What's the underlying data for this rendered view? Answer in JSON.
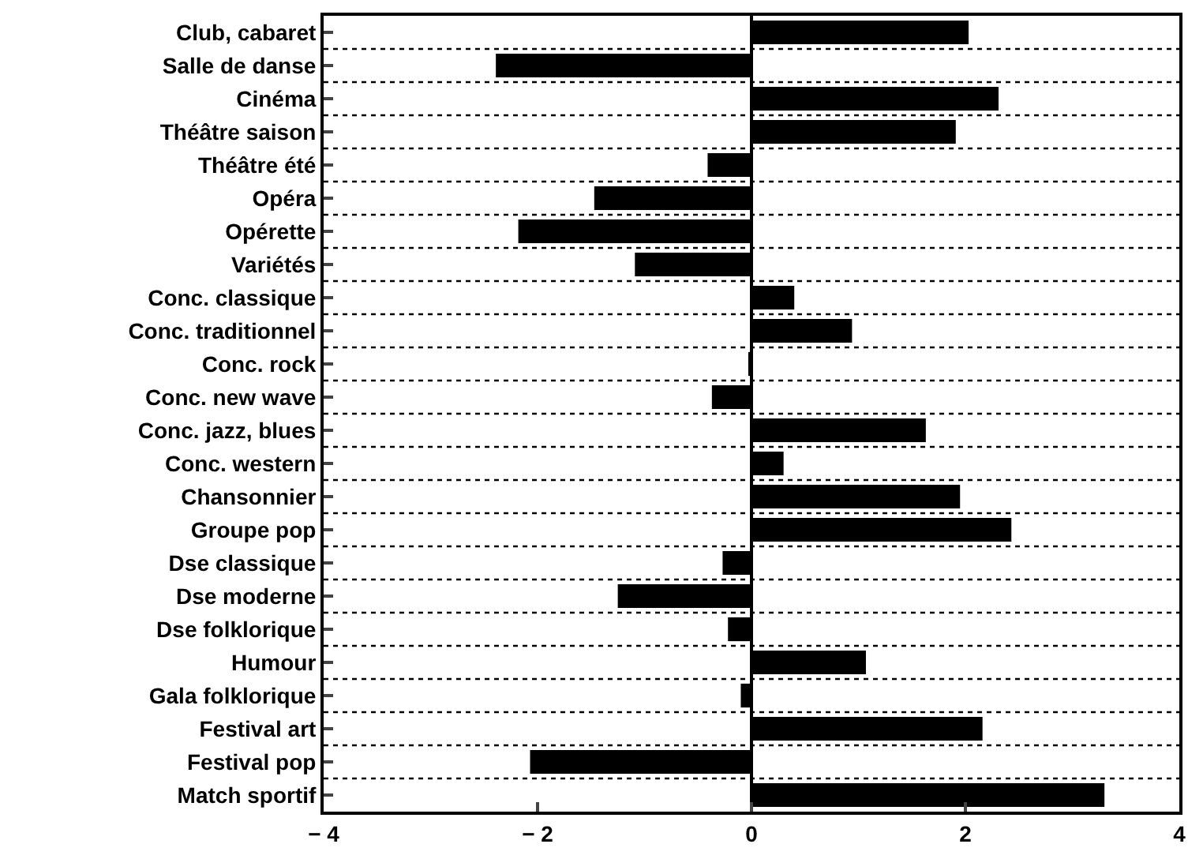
{
  "chart_data": {
    "type": "bar",
    "orientation": "horizontal",
    "categories": [
      "Club, cabaret",
      "Salle de danse",
      "Cinéma",
      "Théâtre saison",
      "Théâtre été",
      "Opéra",
      "Opérette",
      "Variétés",
      "Conc. classique",
      "Conc. traditionnel",
      "Conc. rock",
      "Conc. new wave",
      "Conc. jazz, blues",
      "Conc. western",
      "Chansonnier",
      "Groupe pop",
      "Dse classique",
      "Dse moderne",
      "Dse folklorique",
      "Humour",
      "Gala folklorique",
      "Festival art",
      "Festival pop",
      "Match sportif"
    ],
    "values": [
      2.03,
      -2.39,
      2.31,
      1.91,
      -0.41,
      -1.47,
      -2.18,
      -1.09,
      0.4,
      0.94,
      -0.03,
      -0.37,
      1.63,
      0.3,
      1.95,
      2.43,
      -0.27,
      -1.25,
      -0.22,
      1.07,
      -0.1,
      2.16,
      -2.07,
      3.3
    ],
    "color": "#000000",
    "xlim": [
      -4,
      4
    ],
    "xticks": [
      -4,
      -2,
      0,
      2,
      4
    ],
    "grid": "y"
  }
}
